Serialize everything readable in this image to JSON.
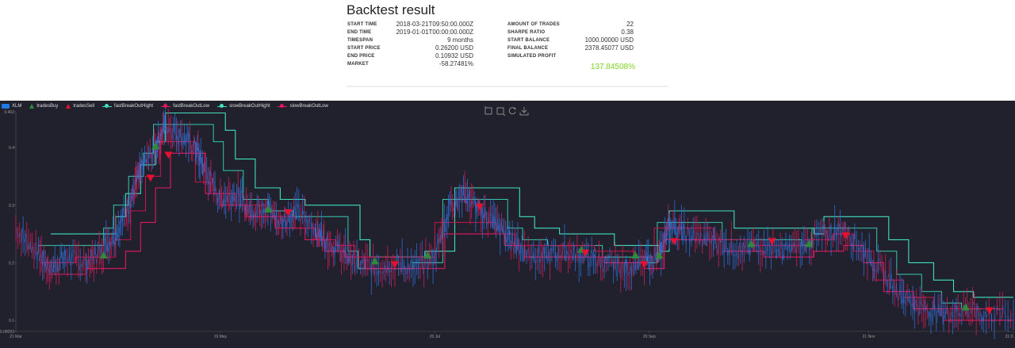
{
  "title": "Backtest result",
  "stats_left": [
    {
      "label": "START TIME",
      "value": "2018-03-21T09:50:00.000Z"
    },
    {
      "label": "END TIME",
      "value": "2019-01-01T00:00:00.000Z"
    },
    {
      "label": "TIMESPAN",
      "value": "9 months"
    },
    {
      "label": "START PRICE",
      "value": "0.26200 USD"
    },
    {
      "label": "END PRICE",
      "value": "0.10932 USD"
    },
    {
      "label": "MARKET",
      "value": "-58.27481%"
    }
  ],
  "stats_right": [
    {
      "label": "AMOUNT OF TRADES",
      "value": "22"
    },
    {
      "label": "SHARPE RATIO",
      "value": "0.38"
    },
    {
      "label": "START BALANCE",
      "value": "1000.00000 USD"
    },
    {
      "label": "FINAL BALANCE",
      "value": "2378.45077 USD"
    },
    {
      "label": "SIMULATED PROFIT",
      "value": "137.84508%"
    }
  ],
  "legend": [
    {
      "name": "XLM",
      "color": "#1e7be6",
      "shape": "rect"
    },
    {
      "name": "tradesBuy",
      "color": "#2e8b3a",
      "shape": "triangle-up"
    },
    {
      "name": "tradesSell",
      "color": "#e8102e",
      "shape": "triangle-up"
    },
    {
      "name": "fastBreakOutHight",
      "color": "#3fe0c0",
      "shape": "line"
    },
    {
      "name": "fastBreakOutLow",
      "color": "#e0195f",
      "shape": "line"
    },
    {
      "name": "slowBreakOutHight",
      "color": "#3fe0c0",
      "shape": "line"
    },
    {
      "name": "slowBreakOutLow",
      "color": "#e0195f",
      "shape": "line"
    }
  ],
  "toolbox": [
    {
      "icon": "zoom-icon"
    },
    {
      "icon": "zoom-reset-icon"
    },
    {
      "icon": "restore-icon"
    },
    {
      "icon": "download-icon"
    }
  ],
  "chart_data": {
    "type": "line",
    "y_ticks": [
      "0.462",
      "0.4",
      "0.3",
      "0.2",
      "0.1",
      "0.08093"
    ],
    "x_ticks": [
      "21 Mar",
      "19 May",
      "20 Jul",
      "20 Sep",
      "21 Nov",
      "31 D"
    ],
    "ylim": [
      0.08093,
      0.462
    ],
    "grid": false,
    "legend_position": "top-left",
    "price": [
      {
        "x": 0,
        "y": 0.26
      },
      {
        "x": 0.02,
        "y": 0.22
      },
      {
        "x": 0.035,
        "y": 0.19
      },
      {
        "x": 0.05,
        "y": 0.21
      },
      {
        "x": 0.07,
        "y": 0.2
      },
      {
        "x": 0.085,
        "y": 0.22
      },
      {
        "x": 0.1,
        "y": 0.25
      },
      {
        "x": 0.115,
        "y": 0.31
      },
      {
        "x": 0.125,
        "y": 0.36
      },
      {
        "x": 0.14,
        "y": 0.4
      },
      {
        "x": 0.15,
        "y": 0.44
      },
      {
        "x": 0.165,
        "y": 0.42
      },
      {
        "x": 0.18,
        "y": 0.4
      },
      {
        "x": 0.19,
        "y": 0.36
      },
      {
        "x": 0.205,
        "y": 0.31
      },
      {
        "x": 0.22,
        "y": 0.32
      },
      {
        "x": 0.235,
        "y": 0.29
      },
      {
        "x": 0.25,
        "y": 0.3
      },
      {
        "x": 0.265,
        "y": 0.27
      },
      {
        "x": 0.28,
        "y": 0.29
      },
      {
        "x": 0.3,
        "y": 0.26
      },
      {
        "x": 0.31,
        "y": 0.24
      },
      {
        "x": 0.325,
        "y": 0.22
      },
      {
        "x": 0.34,
        "y": 0.2
      },
      {
        "x": 0.36,
        "y": 0.19
      },
      {
        "x": 0.38,
        "y": 0.2
      },
      {
        "x": 0.4,
        "y": 0.19
      },
      {
        "x": 0.42,
        "y": 0.21
      },
      {
        "x": 0.435,
        "y": 0.3
      },
      {
        "x": 0.45,
        "y": 0.32
      },
      {
        "x": 0.465,
        "y": 0.29
      },
      {
        "x": 0.48,
        "y": 0.27
      },
      {
        "x": 0.495,
        "y": 0.24
      },
      {
        "x": 0.51,
        "y": 0.22
      },
      {
        "x": 0.53,
        "y": 0.21
      },
      {
        "x": 0.55,
        "y": 0.22
      },
      {
        "x": 0.57,
        "y": 0.21
      },
      {
        "x": 0.59,
        "y": 0.2
      },
      {
        "x": 0.61,
        "y": 0.19
      },
      {
        "x": 0.63,
        "y": 0.2
      },
      {
        "x": 0.645,
        "y": 0.21
      },
      {
        "x": 0.655,
        "y": 0.27
      },
      {
        "x": 0.67,
        "y": 0.25
      },
      {
        "x": 0.69,
        "y": 0.24
      },
      {
        "x": 0.71,
        "y": 0.23
      },
      {
        "x": 0.73,
        "y": 0.22
      },
      {
        "x": 0.75,
        "y": 0.23
      },
      {
        "x": 0.77,
        "y": 0.22
      },
      {
        "x": 0.79,
        "y": 0.23
      },
      {
        "x": 0.81,
        "y": 0.25
      },
      {
        "x": 0.83,
        "y": 0.26
      },
      {
        "x": 0.85,
        "y": 0.22
      },
      {
        "x": 0.87,
        "y": 0.18
      },
      {
        "x": 0.89,
        "y": 0.14
      },
      {
        "x": 0.91,
        "y": 0.12
      },
      {
        "x": 0.93,
        "y": 0.11
      },
      {
        "x": 0.95,
        "y": 0.12
      },
      {
        "x": 0.97,
        "y": 0.11
      },
      {
        "x": 1.0,
        "y": 0.11
      }
    ],
    "fast_high": [
      [
        0.035,
        0.25
      ],
      [
        0.085,
        0.25
      ],
      [
        0.1,
        0.28
      ],
      [
        0.11,
        0.32
      ],
      [
        0.125,
        0.37
      ],
      [
        0.14,
        0.41
      ],
      [
        0.15,
        0.46
      ],
      [
        0.19,
        0.46
      ],
      [
        0.21,
        0.43
      ],
      [
        0.22,
        0.38
      ],
      [
        0.24,
        0.33
      ],
      [
        0.265,
        0.31
      ],
      [
        0.28,
        0.31
      ],
      [
        0.29,
        0.3
      ],
      [
        0.33,
        0.3
      ],
      [
        0.345,
        0.24
      ],
      [
        0.355,
        0.21
      ],
      [
        0.39,
        0.21
      ],
      [
        0.41,
        0.22
      ],
      [
        0.425,
        0.22
      ],
      [
        0.44,
        0.33
      ],
      [
        0.49,
        0.33
      ],
      [
        0.505,
        0.28
      ],
      [
        0.52,
        0.26
      ],
      [
        0.545,
        0.25
      ],
      [
        0.575,
        0.25
      ],
      [
        0.6,
        0.23
      ],
      [
        0.615,
        0.23
      ],
      [
        0.645,
        0.22
      ],
      [
        0.655,
        0.29
      ],
      [
        0.71,
        0.29
      ],
      [
        0.72,
        0.26
      ],
      [
        0.76,
        0.26
      ],
      [
        0.8,
        0.25
      ],
      [
        0.81,
        0.28
      ],
      [
        0.86,
        0.28
      ],
      [
        0.875,
        0.24
      ],
      [
        0.895,
        0.2
      ],
      [
        0.92,
        0.17
      ],
      [
        0.94,
        0.15
      ],
      [
        0.96,
        0.14
      ],
      [
        1.0,
        0.14
      ]
    ],
    "fast_low": [
      [
        0.035,
        0.18
      ],
      [
        0.07,
        0.19
      ],
      [
        0.095,
        0.19
      ],
      [
        0.11,
        0.22
      ],
      [
        0.125,
        0.27
      ],
      [
        0.14,
        0.33
      ],
      [
        0.155,
        0.39
      ],
      [
        0.175,
        0.39
      ],
      [
        0.19,
        0.32
      ],
      [
        0.205,
        0.3
      ],
      [
        0.23,
        0.28
      ],
      [
        0.26,
        0.26
      ],
      [
        0.29,
        0.24
      ],
      [
        0.31,
        0.22
      ],
      [
        0.33,
        0.21
      ],
      [
        0.35,
        0.19
      ],
      [
        0.41,
        0.19
      ],
      [
        0.43,
        0.25
      ],
      [
        0.47,
        0.25
      ],
      [
        0.49,
        0.23
      ],
      [
        0.51,
        0.21
      ],
      [
        0.55,
        0.21
      ],
      [
        0.59,
        0.2
      ],
      [
        0.63,
        0.19
      ],
      [
        0.65,
        0.24
      ],
      [
        0.69,
        0.24
      ],
      [
        0.71,
        0.22
      ],
      [
        0.75,
        0.21
      ],
      [
        0.8,
        0.22
      ],
      [
        0.83,
        0.23
      ],
      [
        0.85,
        0.2
      ],
      [
        0.87,
        0.15
      ],
      [
        0.9,
        0.12
      ],
      [
        0.93,
        0.1
      ],
      [
        0.96,
        0.1
      ],
      [
        1.0,
        0.1
      ]
    ],
    "buys": [
      {
        "x": 0.088,
        "y": 0.21
      },
      {
        "x": 0.14,
        "y": 0.4
      },
      {
        "x": 0.253,
        "y": 0.29
      },
      {
        "x": 0.36,
        "y": 0.2
      },
      {
        "x": 0.413,
        "y": 0.21
      },
      {
        "x": 0.567,
        "y": 0.22
      },
      {
        "x": 0.621,
        "y": 0.21
      },
      {
        "x": 0.645,
        "y": 0.21
      },
      {
        "x": 0.737,
        "y": 0.23
      },
      {
        "x": 0.795,
        "y": 0.23
      },
      {
        "x": 0.952,
        "y": 0.12
      }
    ],
    "sells": [
      {
        "x": 0.135,
        "y": 0.35
      },
      {
        "x": 0.153,
        "y": 0.39
      },
      {
        "x": 0.273,
        "y": 0.29
      },
      {
        "x": 0.38,
        "y": 0.2
      },
      {
        "x": 0.465,
        "y": 0.3
      },
      {
        "x": 0.571,
        "y": 0.22
      },
      {
        "x": 0.63,
        "y": 0.2
      },
      {
        "x": 0.66,
        "y": 0.24
      },
      {
        "x": 0.758,
        "y": 0.24
      },
      {
        "x": 0.832,
        "y": 0.25
      },
      {
        "x": 0.976,
        "y": 0.12
      }
    ]
  }
}
